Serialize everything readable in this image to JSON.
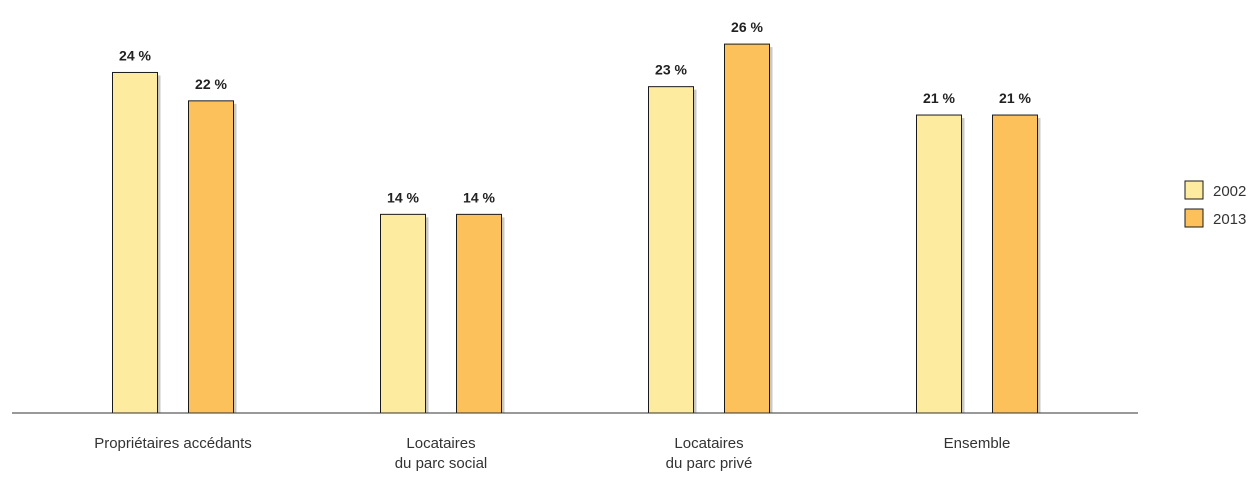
{
  "chart_data": {
    "type": "bar",
    "categories": [
      [
        "Propriétaires accédants"
      ],
      [
        "Locataires",
        "du parc social"
      ],
      [
        "Locataires",
        "du parc privé"
      ],
      [
        "Ensemble"
      ]
    ],
    "series": [
      {
        "name": "2002",
        "values": [
          24,
          14,
          23,
          21
        ],
        "labels": [
          "24 %",
          "14 %",
          "23 %",
          "21 %"
        ],
        "color": "#FDEBA0"
      },
      {
        "name": "2013",
        "values": [
          22,
          14,
          26,
          21
        ],
        "labels": [
          "22 %",
          "14 %",
          "26 %",
          "21 %"
        ],
        "color": "#FDC15C"
      }
    ],
    "title": "",
    "xlabel": "",
    "ylabel": "",
    "ylim": [
      0,
      26.5
    ],
    "grid": false,
    "legend_position": "right",
    "bar_stroke": "#1a1a1a",
    "shadow_color": "#9a9a9a"
  }
}
